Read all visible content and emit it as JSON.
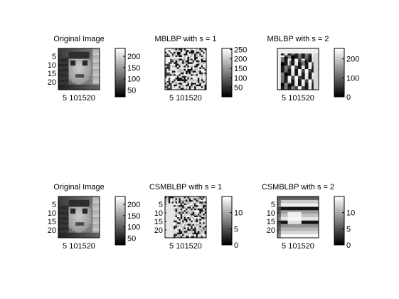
{
  "window": {
    "background": "#ffffff"
  },
  "image_grid": {
    "rows": 24,
    "cols": 24
  },
  "panels": [
    {
      "title": "Original Image",
      "y_ticks": [
        "5",
        "10",
        "15",
        "20"
      ],
      "x_ticks": "5 101520",
      "colorbar_ticks": [
        {
          "label": "200",
          "value": 200
        },
        {
          "label": "150",
          "value": 150
        },
        {
          "label": "100",
          "value": 100
        },
        {
          "label": "50",
          "value": 50
        }
      ],
      "colorbar_range": [
        20,
        235
      ],
      "image_kind": "face"
    },
    {
      "title": "MBLBP with s = 1",
      "y_ticks": [],
      "x_ticks": "5 101520",
      "colorbar_ticks": [
        {
          "label": "250",
          "value": 250
        },
        {
          "label": "200",
          "value": 200
        },
        {
          "label": "150",
          "value": 150
        },
        {
          "label": "100",
          "value": 100
        },
        {
          "label": "50",
          "value": 50
        }
      ],
      "colorbar_range": [
        0,
        255
      ],
      "image_kind": "noise",
      "seed": 11
    },
    {
      "title": "MBLBP with s = 2",
      "y_ticks": [],
      "x_ticks": "5 101520",
      "colorbar_ticks": [
        {
          "label": "200",
          "value": 200
        },
        {
          "label": "100",
          "value": 100
        },
        {
          "label": "0",
          "value": 0
        }
      ],
      "colorbar_range": [
        0,
        255
      ],
      "image_kind": "blocky",
      "seed": 23
    },
    {
      "title": "Original Image",
      "y_ticks": [
        "5",
        "10",
        "15",
        "20"
      ],
      "x_ticks": "5 101520",
      "colorbar_ticks": [
        {
          "label": "200",
          "value": 200
        },
        {
          "label": "150",
          "value": 150
        },
        {
          "label": "100",
          "value": 100
        },
        {
          "label": "50",
          "value": 50
        }
      ],
      "colorbar_range": [
        20,
        235
      ],
      "image_kind": "face"
    },
    {
      "title": "CSMBLBP with s = 1",
      "y_ticks": [
        "5",
        "10",
        "15",
        "20"
      ],
      "x_ticks": "5 101520",
      "colorbar_ticks": [
        {
          "label": "10",
          "value": 10
        },
        {
          "label": "5",
          "value": 5
        },
        {
          "label": "0",
          "value": 0
        }
      ],
      "colorbar_range": [
        0,
        15
      ],
      "image_kind": "noise-light",
      "seed": 37
    },
    {
      "title": "CSMBLBP with s = 2",
      "y_ticks": [
        "5",
        "10",
        "15",
        "20"
      ],
      "x_ticks": "5 101520",
      "colorbar_ticks": [
        {
          "label": "10",
          "value": 10
        },
        {
          "label": "5",
          "value": 5
        },
        {
          "label": "0",
          "value": 0
        }
      ],
      "colorbar_range": [
        0,
        15
      ],
      "image_kind": "blocky-light",
      "seed": 53
    }
  ]
}
